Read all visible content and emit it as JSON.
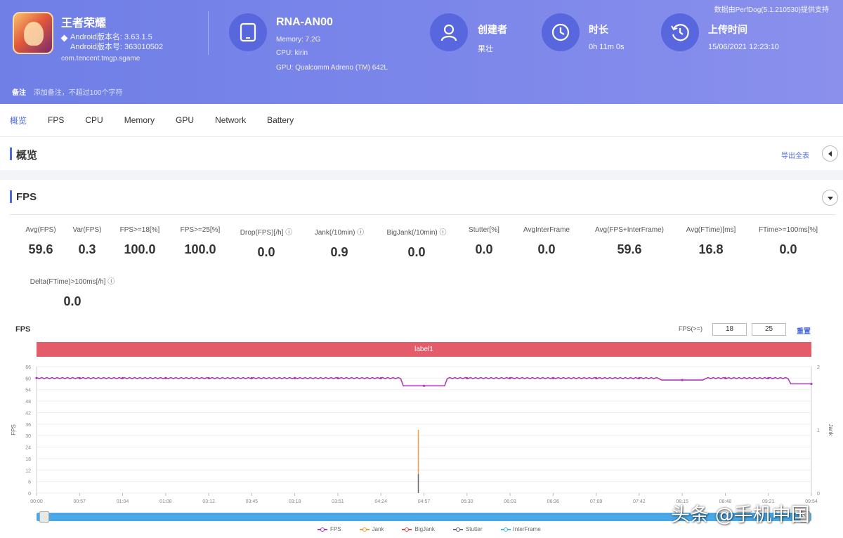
{
  "app": {
    "name": "王者荣耀",
    "android_version_name": "Android版本名: 3.63.1.5",
    "android_version_code": "Android版本号: 363010502",
    "package": "com.tencent.tmgp.sgame"
  },
  "device": {
    "name": "RNA-AN00",
    "memory": "Memory: 7.2G",
    "cpu": "CPU: kirin",
    "gpu": "GPU: Qualcomm Adreno (TM) 642L"
  },
  "creator": {
    "title": "创建者",
    "value": "果壮"
  },
  "duration": {
    "title": "时长",
    "value": "0h 11m 0s"
  },
  "upload": {
    "title": "上传时间",
    "value": "15/06/2021 12:23:10"
  },
  "perfdog_note": "数据由PerfDog(5.1.210530)提供支持",
  "note": {
    "label": "备注",
    "value": "添加备注，不超过100个字符"
  },
  "tabs": [
    "概览",
    "FPS",
    "CPU",
    "Memory",
    "GPU",
    "Network",
    "Battery"
  ],
  "overview": {
    "title": "概览",
    "export_label": "导出全表"
  },
  "fps_section": {
    "title": "FPS",
    "metrics": [
      {
        "label": "Avg(FPS)",
        "value": "59.6"
      },
      {
        "label": "Var(FPS)",
        "value": "0.3"
      },
      {
        "label": "FPS>=18[%]",
        "value": "100.0"
      },
      {
        "label": "FPS>=25[%]",
        "value": "100.0"
      },
      {
        "label": "Drop(FPS)[/h] ⓘ",
        "value": "0.0"
      },
      {
        "label": "Jank(/10min) ⓘ",
        "value": "0.9"
      },
      {
        "label": "BigJank(/10min) ⓘ",
        "value": "0.0"
      },
      {
        "label": "Stutter[%]",
        "value": "0.0"
      },
      {
        "label": "AvgInterFrame",
        "value": "0.0"
      },
      {
        "label": "Avg(FPS+InterFrame)",
        "value": "59.6"
      },
      {
        "label": "Avg(FTime)[ms]",
        "value": "16.8"
      },
      {
        "label": "FTime>=100ms[%]",
        "value": "0.0"
      },
      {
        "label": "Delta(FTime)>100ms[/h] ⓘ",
        "value": "0.0"
      }
    ],
    "chart_title": "FPS",
    "filter_label": "FPS(>=)",
    "filter_value_1": "18",
    "filter_value_2": "25",
    "reset_label": "重置",
    "label_bar": "label1"
  },
  "chart_data": {
    "type": "line",
    "x": [
      "00:00",
      "00:57",
      "01:04",
      "01:08",
      "03:12",
      "03:45",
      "03:18",
      "03:51",
      "04:24",
      "04:57",
      "05:30",
      "06:03",
      "06:36",
      "07:09",
      "07:42",
      "08:15",
      "08:48",
      "09:21",
      "09:54"
    ],
    "ylabel": "FPS",
    "y2label": "Jank",
    "ylim": [
      0,
      66
    ],
    "y_ticks": [
      0,
      6,
      12,
      18,
      24,
      30,
      36,
      42,
      48,
      54,
      60,
      66
    ],
    "y2lim": [
      0,
      2
    ],
    "y2_ticks": [
      0,
      1,
      2
    ],
    "series": [
      {
        "name": "FPS",
        "color": "#b03cb3",
        "values": [
          60,
          60,
          60,
          60,
          60,
          60,
          60,
          60,
          60,
          56,
          60,
          60,
          60,
          60,
          60,
          59,
          60,
          60,
          57
        ]
      },
      {
        "name": "Jank",
        "color": "#f39c3c",
        "axis": "right",
        "spike_x": "04:57",
        "spike_value": 1
      },
      {
        "name": "BigJank",
        "color": "#d84c4c",
        "axis": "right",
        "spike_x": "04:57",
        "spike_value": 0
      },
      {
        "name": "Stutter",
        "color": "#666a80",
        "axis": "right",
        "spike_x": "04:57",
        "spike_value": 0.3
      },
      {
        "name": "InterFrame",
        "color": "#45b7e0",
        "axis": "right",
        "spike_x": "04:57",
        "spike_value": 0
      }
    ],
    "grid": true,
    "legend": "bottom-center"
  },
  "watermark": "头条 @手机中国",
  "colors": {
    "accent": "#4d6bd8",
    "header": "#7b86ea",
    "label_bar": "#e45b6a",
    "fps_line": "#b03cb3"
  }
}
